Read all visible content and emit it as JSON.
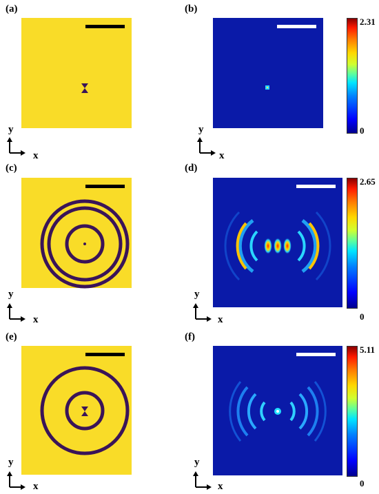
{
  "panels": [
    {
      "id": "a",
      "label": "(a)"
    },
    {
      "id": "b",
      "label": "(b)"
    },
    {
      "id": "c",
      "label": "(c)"
    },
    {
      "id": "d",
      "label": "(d)"
    },
    {
      "id": "e",
      "label": "(e)"
    },
    {
      "id": "f",
      "label": "(f)"
    }
  ],
  "axis_labels": {
    "x": "x",
    "y": "y"
  },
  "colorbars": [
    {
      "max": "2.31",
      "min": "0"
    },
    {
      "max": "2.65",
      "min": "0"
    },
    {
      "max": "5.11",
      "min": "0"
    }
  ],
  "colors": {
    "structure_background": "#f9dc28",
    "structure_features": "#3a1458",
    "field_background": "#0a1aa8"
  }
}
